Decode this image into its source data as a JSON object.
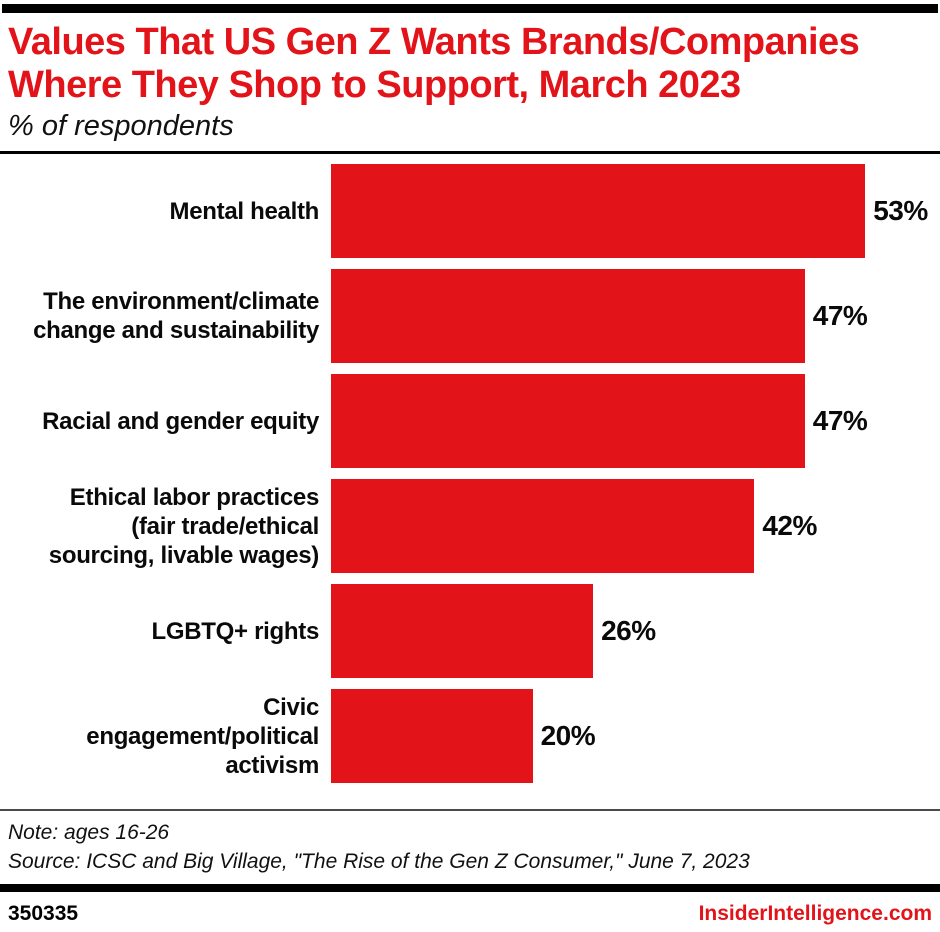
{
  "accent_color": "#e3131a",
  "header": {
    "title_lines": [
      "Values That US Gen Z Wants Brands/Companies",
      "Where They Shop to Support, March 2023"
    ],
    "subtitle": "% of respondents"
  },
  "chart_data": {
    "type": "bar",
    "orientation": "horizontal",
    "title": "Values That US Gen Z Wants Brands/Companies Where They Shop to Support, March 2023",
    "subtitle": "% of respondents",
    "categories": [
      "Mental health",
      "The environment/climate change and sustainability",
      "Racial and gender equity",
      "Ethical labor practices (fair trade/ethical sourcing, livable wages)",
      "LGBTQ+ rights",
      "Civic engagement/political activism"
    ],
    "categories_wrapped": [
      [
        "Mental health"
      ],
      [
        "The environment/climate",
        "change and sustainability"
      ],
      [
        "Racial and gender equity"
      ],
      [
        "Ethical labor practices",
        "(fair trade/ethical",
        "sourcing, livable wages)"
      ],
      [
        "LGBTQ+ rights"
      ],
      [
        "Civic",
        "engagement/political",
        "activism"
      ]
    ],
    "values": [
      53,
      47,
      47,
      42,
      26,
      20
    ],
    "value_labels": [
      "53%",
      "47%",
      "47%",
      "42%",
      "26%",
      "20%"
    ],
    "value_suffix": "%",
    "xlim": [
      0,
      60
    ],
    "grid": false,
    "legend": false,
    "bar_color": "#e3131a",
    "data_label_position": "outside-end"
  },
  "footnotes": {
    "note": "Note: ages 16-26",
    "source": "Source: ICSC and Big Village, \"The Rise of the Gen Z Consumer,\" June 7, 2023"
  },
  "footer": {
    "chart_id": "350335",
    "brand": "InsiderIntelligence.com"
  }
}
